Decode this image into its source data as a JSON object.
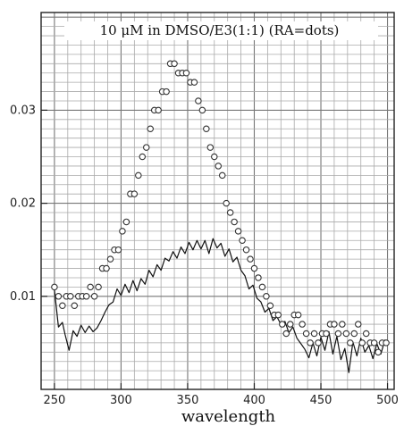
{
  "chart_data": {
    "type": "line",
    "title": "10 μM in DMSO/E3(1:1) (RA=dots)",
    "xlabel": "wavelength",
    "ylabel": "",
    "xlim": [
      240,
      505
    ],
    "ylim": [
      0.0,
      0.0405
    ],
    "x_ticks": [
      250,
      300,
      350,
      400,
      450,
      500
    ],
    "x_tick_labels": [
      "250",
      "300",
      "350",
      "400",
      "450",
      "500"
    ],
    "y_ticks": [
      0.01,
      0.02,
      0.03
    ],
    "y_tick_labels": [
      "0.01",
      "0.02",
      "0.03"
    ],
    "grid": true,
    "series": [
      {
        "kind": "line",
        "color": "#111111",
        "x": [
          250,
          253,
          256,
          258,
          261,
          264,
          267,
          270,
          273,
          276,
          279,
          282,
          285,
          288,
          291,
          294,
          297,
          300,
          303,
          306,
          309,
          312,
          315,
          318,
          321,
          324,
          327,
          330,
          333,
          336,
          339,
          342,
          345,
          348,
          351,
          354,
          357,
          360,
          363,
          366,
          369,
          372,
          375,
          378,
          381,
          384,
          387,
          390,
          393,
          396,
          399,
          402,
          405,
          408,
          411,
          414,
          417,
          420,
          423,
          426,
          429,
          432,
          435,
          438,
          441,
          444,
          447,
          450,
          453,
          456,
          459,
          462,
          465,
          468,
          471,
          474,
          477,
          480,
          483,
          486,
          489,
          492,
          495,
          498,
          500
        ],
        "y": [
          0.0107,
          0.0067,
          0.0072,
          0.0059,
          0.0042,
          0.0063,
          0.0057,
          0.0069,
          0.0061,
          0.0068,
          0.0062,
          0.0066,
          0.0074,
          0.0083,
          0.0091,
          0.0094,
          0.0108,
          0.0101,
          0.0113,
          0.0104,
          0.0117,
          0.0106,
          0.0119,
          0.0113,
          0.0128,
          0.0121,
          0.0134,
          0.0128,
          0.0141,
          0.0138,
          0.0148,
          0.0141,
          0.0153,
          0.0146,
          0.0158,
          0.015,
          0.016,
          0.0151,
          0.016,
          0.0146,
          0.0162,
          0.0152,
          0.0157,
          0.0143,
          0.0151,
          0.0137,
          0.0142,
          0.0128,
          0.0122,
          0.0108,
          0.0112,
          0.0098,
          0.0094,
          0.0083,
          0.0087,
          0.0074,
          0.0078,
          0.007,
          0.0073,
          0.0061,
          0.0067,
          0.0055,
          0.0049,
          0.0043,
          0.0034,
          0.005,
          0.0036,
          0.0056,
          0.0042,
          0.0062,
          0.0038,
          0.0057,
          0.0032,
          0.0044,
          0.0018,
          0.0051,
          0.0036,
          0.0055,
          0.004,
          0.0047,
          0.0033,
          0.0049,
          0.0038,
          0.0053,
          0.0047
        ]
      },
      {
        "kind": "dots",
        "color": "#333333",
        "x": [
          250,
          253,
          256,
          259,
          262,
          265,
          268,
          271,
          274,
          277,
          280,
          283,
          286,
          289,
          292,
          295,
          298,
          301,
          304,
          307,
          310,
          313,
          316,
          319,
          322,
          325,
          328,
          331,
          334,
          337,
          340,
          343,
          346,
          349,
          352,
          355,
          358,
          361,
          364,
          367,
          370,
          373,
          376,
          379,
          382,
          385,
          388,
          391,
          394,
          397,
          400,
          403,
          406,
          409,
          412,
          415,
          418,
          421,
          424,
          427,
          430,
          433,
          436,
          439,
          442,
          445,
          448,
          451,
          454,
          457,
          460,
          463,
          466,
          469,
          472,
          475,
          478,
          481,
          484,
          487,
          490,
          493,
          496,
          499
        ],
        "y": [
          0.011,
          0.01,
          0.009,
          0.01,
          0.01,
          0.009,
          0.01,
          0.01,
          0.01,
          0.011,
          0.01,
          0.011,
          0.013,
          0.013,
          0.014,
          0.015,
          0.015,
          0.017,
          0.018,
          0.021,
          0.021,
          0.023,
          0.025,
          0.026,
          0.028,
          0.03,
          0.03,
          0.032,
          0.032,
          0.035,
          0.035,
          0.034,
          0.034,
          0.034,
          0.033,
          0.033,
          0.031,
          0.03,
          0.028,
          0.026,
          0.025,
          0.024,
          0.023,
          0.02,
          0.019,
          0.018,
          0.017,
          0.016,
          0.015,
          0.014,
          0.013,
          0.012,
          0.011,
          0.01,
          0.009,
          0.008,
          0.008,
          0.007,
          0.006,
          0.007,
          0.008,
          0.008,
          0.007,
          0.006,
          0.005,
          0.006,
          0.005,
          0.006,
          0.006,
          0.007,
          0.007,
          0.006,
          0.007,
          0.006,
          0.005,
          0.006,
          0.007,
          0.005,
          0.006,
          0.005,
          0.005,
          0.004,
          0.005,
          0.005
        ]
      }
    ]
  }
}
